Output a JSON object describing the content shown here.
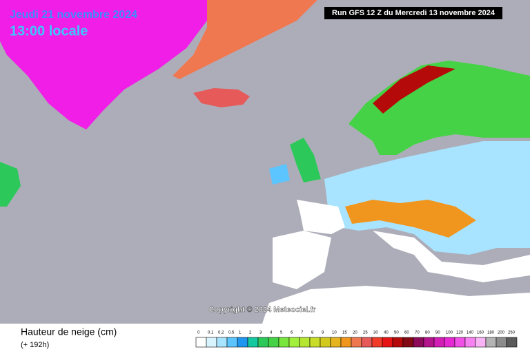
{
  "header": {
    "date": "Jeudi 21 novembre 2024",
    "time": "13:00 locale",
    "run": "Run GFS 12 Z du Mercredi 13 novembre 2024"
  },
  "copyright": "Copyright © 2024 Meteociel.fr",
  "footer": {
    "title": "Hauteur de neige (cm)",
    "lead": "(+ 192h)"
  },
  "legend": {
    "values": [
      0,
      0.1,
      0.2,
      0.5,
      1,
      2,
      3,
      4,
      5,
      6,
      7,
      8,
      9,
      10,
      15,
      20,
      25,
      30,
      40,
      50,
      60,
      70,
      80,
      90,
      100,
      120,
      140,
      160,
      180,
      200,
      250
    ],
    "colors": [
      "#ffffff",
      "#d8f4ff",
      "#a8e4ff",
      "#5cc4ff",
      "#1e96f0",
      "#14c8a0",
      "#2dc85a",
      "#46d246",
      "#78e63c",
      "#a0f03c",
      "#b4e632",
      "#c8dc28",
      "#d2c81e",
      "#e6b41e",
      "#f0961e",
      "#f07850",
      "#e65a5a",
      "#f03c28",
      "#e61414",
      "#b40a0a",
      "#820a14",
      "#8c0a5a",
      "#b4148c",
      "#d21eb4",
      "#e628d2",
      "#f050e6",
      "#f582f0",
      "#f8b4f5",
      "#b4b4b4",
      "#8c8c8c",
      "#5a5a5a"
    ]
  }
}
